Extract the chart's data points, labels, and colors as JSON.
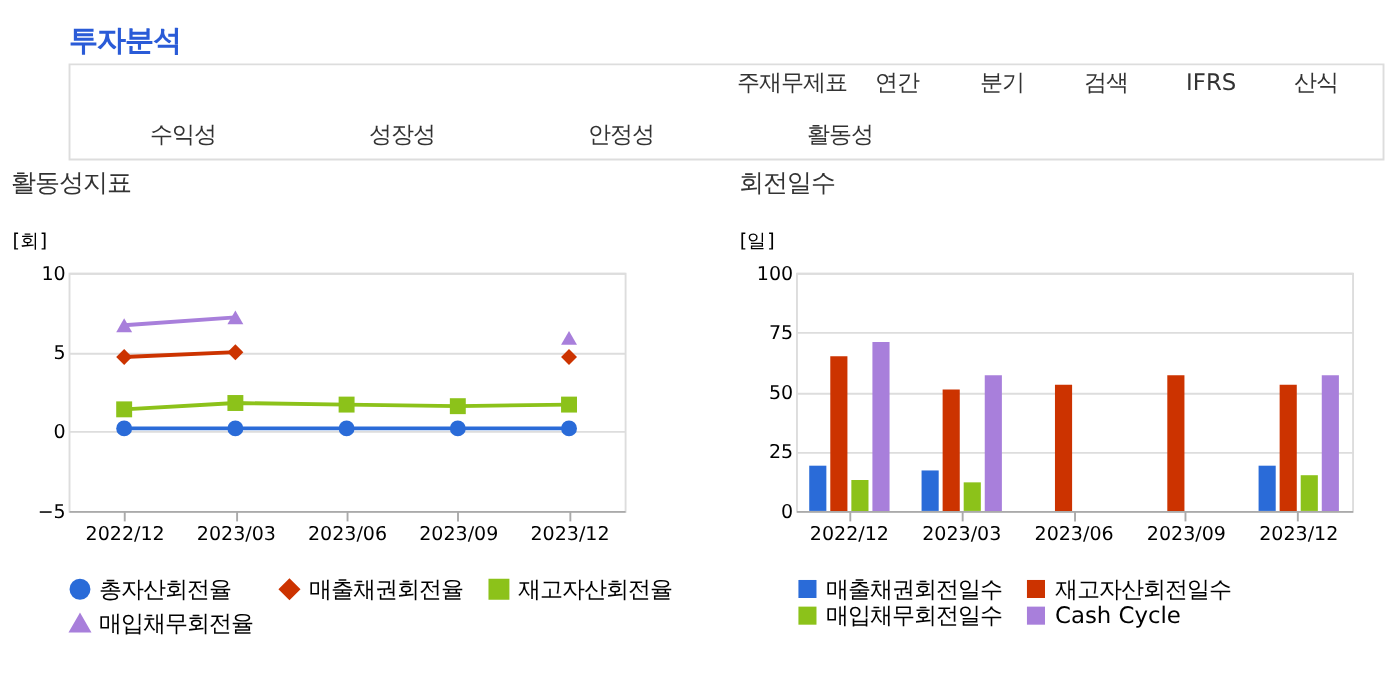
{
  "chart_data": [
    {
      "type": "other",
      "title": "투자분석",
      "annotations": [
        "주재무제표",
        "연간",
        "분기",
        "검색",
        "IFRS",
        "산식",
        "수익성",
        "성장성",
        "안정성",
        "활동성"
      ]
    },
    {
      "type": "line",
      "title": "활동성지표",
      "ylabel": "[회]",
      "categories": [
        "2022/12",
        "2023/03",
        "2023/06",
        "2023/09",
        "2023/12"
      ],
      "ylim": [
        -5,
        10
      ],
      "yticks": [
        -5,
        0,
        5,
        10
      ],
      "grid": "y",
      "legend": "bottom",
      "series": [
        {
          "name": "총자산회전율",
          "color": "#2a6bd8",
          "marker": "circle",
          "values": [
            0.2,
            0.2,
            0.2,
            0.2,
            0.2
          ]
        },
        {
          "name": "매출채권회전율",
          "color": "#cc3300",
          "marker": "diamond",
          "values": [
            4.7,
            5.0,
            null,
            null,
            4.7
          ]
        },
        {
          "name": "재고자산회전율",
          "color": "#8cc21a",
          "marker": "square",
          "values": [
            1.4,
            1.8,
            1.7,
            1.6,
            1.7
          ]
        },
        {
          "name": "매입채무회전율",
          "color": "#a87fdb",
          "marker": "triangle",
          "values": [
            6.7,
            7.2,
            null,
            null,
            5.9
          ]
        }
      ]
    },
    {
      "type": "bar",
      "title": "회전일수",
      "ylabel": "[일]",
      "categories": [
        "2022/12",
        "2023/03",
        "2023/06",
        "2023/09",
        "2023/12"
      ],
      "ylim": [
        0,
        100
      ],
      "yticks": [
        0,
        25,
        50,
        75,
        100
      ],
      "grid": "y",
      "legend": "bottom",
      "series": [
        {
          "name": "매출채권회전일수",
          "color": "#2a6bd8",
          "values": [
            19,
            17,
            null,
            null,
            19
          ]
        },
        {
          "name": "재고자산회전일수",
          "color": "#cc3300",
          "values": [
            65,
            51,
            53,
            57,
            53
          ]
        },
        {
          "name": "매입채무회전일수",
          "color": "#8cc21a",
          "values": [
            13,
            12,
            null,
            null,
            15
          ]
        },
        {
          "name": "Cash Cycle",
          "color": "#a87fdb",
          "values": [
            71,
            57,
            null,
            null,
            57
          ]
        }
      ]
    }
  ]
}
